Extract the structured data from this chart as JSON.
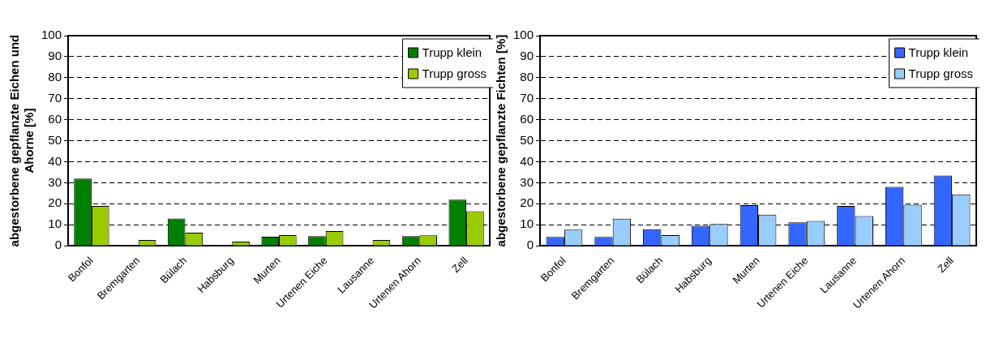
{
  "chart_data": [
    {
      "type": "bar",
      "ylabel": "abgestorbene gepflanzte Eichen und Ahorne [%]",
      "categories": [
        "Bonfol",
        "Bremgarten",
        "Bülach",
        "Habsburg",
        "Murten",
        "Urtenen Eiche",
        "Lausanne",
        "Urtenen Ahorn",
        "Zell"
      ],
      "series": [
        {
          "name": "Trupp klein",
          "color": "#008000",
          "values": [
            32,
            0.5,
            13,
            0.5,
            4.3,
            4.6,
            0,
            4.6,
            22
          ]
        },
        {
          "name": "Trupp gross",
          "color": "#99cc00",
          "values": [
            19,
            2.8,
            6.2,
            2,
            5.1,
            7,
            2.8,
            5,
            16.5
          ]
        }
      ],
      "ylim": [
        0,
        100
      ],
      "yticks": [
        0,
        10,
        20,
        30,
        40,
        50,
        60,
        70,
        80,
        90,
        100
      ],
      "grid": "y",
      "legend": "top right"
    },
    {
      "type": "bar",
      "ylabel": "abgestorbene gepflanzte Fichten [%]",
      "categories": [
        "Bonfol",
        "Bremgarten",
        "Bülach",
        "Habsburg",
        "Murten",
        "Urtenen Eiche",
        "Lausanne",
        "Urtenen Ahorn",
        "Zell"
      ],
      "series": [
        {
          "name": "Trupp klein",
          "color": "#3366ff",
          "values": [
            4.2,
            4.2,
            7.9,
            9.5,
            19.4,
            11.2,
            19,
            28,
            33.4
          ]
        },
        {
          "name": "Trupp gross",
          "color": "#99ccff",
          "values": [
            7.7,
            12.9,
            5.1,
            10.4,
            14.8,
            11.8,
            14.2,
            19.6,
            24.5
          ]
        }
      ],
      "ylim": [
        0,
        100
      ],
      "yticks": [
        0,
        10,
        20,
        30,
        40,
        50,
        60,
        70,
        80,
        90,
        100
      ],
      "grid": "y",
      "legend": "top right"
    }
  ]
}
